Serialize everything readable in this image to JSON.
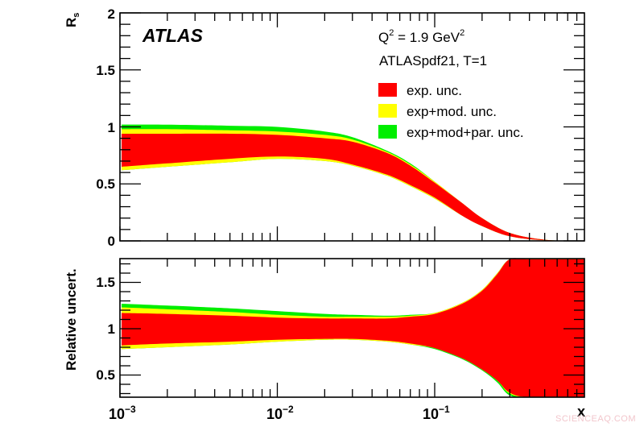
{
  "chart_data": [
    {
      "type": "area",
      "panel": "top",
      "title": "",
      "xlabel": "x",
      "ylabel": "R_s",
      "xscale": "log",
      "xlim": [
        0.001,
        0.9
      ],
      "ylim": [
        0,
        2
      ],
      "yticks": [
        "0",
        "0.5",
        "1",
        "1.5",
        "2"
      ],
      "xtick_labels": [
        "10^-3",
        "10^-2",
        "10^-1"
      ],
      "annotations": {
        "experiment": "ATLAS",
        "q2": "Q² = 1.9 GeV²",
        "pdf_set": "ATLASpdf21, T=1"
      },
      "legend_position": "upper right",
      "x": [
        0.001,
        0.002,
        0.005,
        0.01,
        0.02,
        0.03,
        0.05,
        0.07,
        0.1,
        0.15,
        0.2,
        0.3,
        0.5,
        0.9
      ],
      "series": [
        {
          "name": "exp+mod+par. unc.",
          "color": "#00ee00",
          "lower": [
            0.62,
            0.65,
            0.69,
            0.72,
            0.7,
            0.66,
            0.57,
            0.48,
            0.37,
            0.22,
            0.13,
            0.04,
            0.005,
            0.0
          ],
          "upper": [
            1.02,
            1.02,
            1.01,
            1.0,
            0.96,
            0.91,
            0.79,
            0.68,
            0.52,
            0.33,
            0.2,
            0.07,
            0.01,
            0.0
          ]
        },
        {
          "name": "exp+mod. unc.",
          "color": "#ffff00",
          "lower": [
            0.62,
            0.65,
            0.69,
            0.72,
            0.7,
            0.66,
            0.57,
            0.48,
            0.37,
            0.22,
            0.13,
            0.04,
            0.005,
            0.0
          ],
          "upper": [
            0.98,
            0.98,
            0.97,
            0.96,
            0.93,
            0.89,
            0.78,
            0.67,
            0.52,
            0.33,
            0.2,
            0.07,
            0.01,
            0.0
          ]
        },
        {
          "name": "exp. unc.",
          "color": "#ff0000",
          "lower": [
            0.65,
            0.68,
            0.72,
            0.74,
            0.72,
            0.67,
            0.58,
            0.49,
            0.38,
            0.22,
            0.13,
            0.04,
            0.005,
            0.0
          ],
          "upper": [
            0.94,
            0.94,
            0.94,
            0.93,
            0.9,
            0.87,
            0.77,
            0.66,
            0.51,
            0.33,
            0.2,
            0.07,
            0.01,
            0.0
          ]
        }
      ]
    },
    {
      "type": "area",
      "panel": "bottom",
      "xlabel": "x",
      "ylabel": "Relative uncert.",
      "xscale": "log",
      "xlim": [
        0.001,
        0.9
      ],
      "ylim": [
        0.25,
        1.75
      ],
      "yticks": [
        "0.5",
        "1",
        "1.5"
      ],
      "xtick_labels": [
        "10^-3",
        "10^-2",
        "10^-1"
      ],
      "x": [
        0.001,
        0.002,
        0.005,
        0.01,
        0.02,
        0.03,
        0.05,
        0.07,
        0.1,
        0.15,
        0.2,
        0.25,
        0.3,
        0.4,
        0.9
      ],
      "series": [
        {
          "name": "exp+mod+par. unc.",
          "color": "#00ee00",
          "lower": [
            0.78,
            0.8,
            0.83,
            0.86,
            0.88,
            0.88,
            0.86,
            0.83,
            0.78,
            0.67,
            0.55,
            0.42,
            0.28,
            0.25,
            0.25
          ],
          "upper": [
            1.27,
            1.25,
            1.22,
            1.19,
            1.16,
            1.15,
            1.14,
            1.15,
            1.17,
            1.28,
            1.42,
            1.6,
            1.75,
            1.75,
            1.75
          ]
        },
        {
          "name": "exp+mod. unc.",
          "color": "#ffff00",
          "lower": [
            0.78,
            0.8,
            0.83,
            0.86,
            0.88,
            0.88,
            0.86,
            0.83,
            0.79,
            0.68,
            0.56,
            0.44,
            0.3,
            0.25,
            0.25
          ],
          "upper": [
            1.23,
            1.21,
            1.18,
            1.15,
            1.13,
            1.13,
            1.13,
            1.14,
            1.17,
            1.28,
            1.42,
            1.6,
            1.75,
            1.75,
            1.75
          ]
        },
        {
          "name": "exp. unc.",
          "color": "#ff0000",
          "lower": [
            0.82,
            0.84,
            0.86,
            0.88,
            0.89,
            0.89,
            0.87,
            0.84,
            0.79,
            0.68,
            0.56,
            0.44,
            0.31,
            0.25,
            0.25
          ],
          "upper": [
            1.17,
            1.16,
            1.14,
            1.12,
            1.11,
            1.11,
            1.11,
            1.13,
            1.16,
            1.27,
            1.41,
            1.59,
            1.75,
            1.75,
            1.75
          ]
        }
      ]
    }
  ],
  "labels": {
    "atlas": "ATLAS",
    "q2_prefix": "Q",
    "q2_mid": " = 1.9 GeV",
    "sup2": "2",
    "pdf_set": "ATLASpdf21, T=1",
    "y_top": "R",
    "y_top_sub": "s",
    "y_bottom": "Relative uncert.",
    "x_axis": "x",
    "x_ten": "10",
    "x_exp_m3": "−3",
    "x_exp_m2": "−2",
    "x_exp_m1": "−1",
    "ytick_top": [
      "0",
      "0.5",
      "1",
      "1.5",
      "2"
    ],
    "ytick_bottom": [
      "0.5",
      "1",
      "1.5"
    ],
    "watermark": "SCIENCEAQ.COM"
  },
  "legend": [
    {
      "label": "exp. unc.",
      "color": "#ff0000"
    },
    {
      "label": "exp+mod. unc.",
      "color": "#ffff00"
    },
    {
      "label": "exp+mod+par. unc.",
      "color": "#00ee00"
    }
  ]
}
